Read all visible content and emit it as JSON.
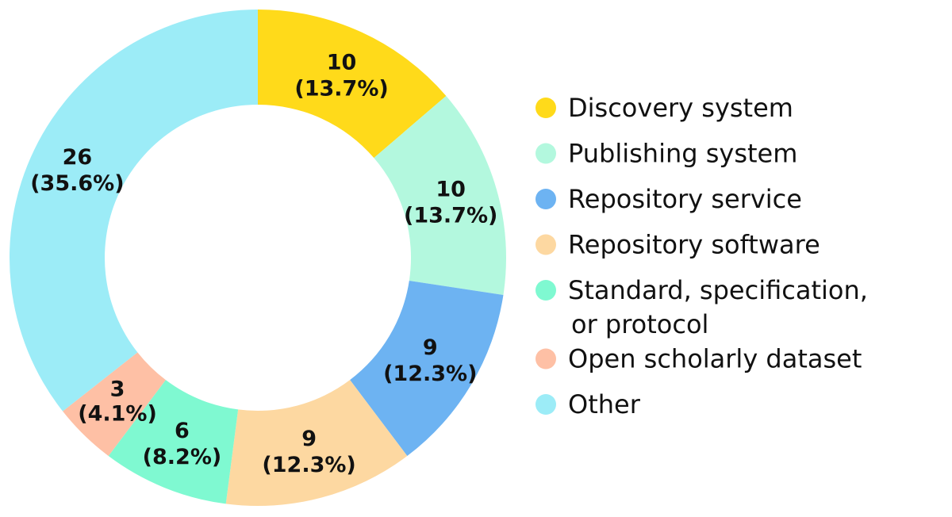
{
  "chart_data": {
    "type": "pie",
    "variant": "donut",
    "title": "",
    "total": 73,
    "categories": [
      "Discovery system",
      "Publishing system",
      "Repository service",
      "Repository software",
      "Standard, specification, or protocol",
      "Open scholarly dataset",
      "Other"
    ],
    "values": [
      10,
      10,
      9,
      9,
      6,
      3,
      26
    ],
    "percent_labels": [
      "(13.7%)",
      "(13.7%)",
      "(12.3%)",
      "(12.3%)",
      "(8.2%)",
      "(4.1%)",
      "(35.6%)"
    ],
    "value_labels": [
      "10",
      "10",
      "9",
      "9",
      "6",
      "3",
      "26"
    ],
    "colors": [
      "#FFDA1A",
      "#B3F8DE",
      "#6DB3F2",
      "#FDD8A1",
      "#7FF9D1",
      "#FEC0A5",
      "#9CECF7"
    ],
    "legend": {
      "placement": "right",
      "entries": [
        {
          "lines": [
            "Discovery system"
          ],
          "color": "#FFDA1A"
        },
        {
          "lines": [
            "Publishing system"
          ],
          "color": "#B3F8DE"
        },
        {
          "lines": [
            "Repository service"
          ],
          "color": "#6DB3F2"
        },
        {
          "lines": [
            "Repository software"
          ],
          "color": "#FDD8A1"
        },
        {
          "lines": [
            "Standard, specification,",
            "or protocol"
          ],
          "color": "#7FF9D1"
        },
        {
          "lines": [
            "Open scholarly dataset"
          ],
          "color": "#FEC0A5"
        },
        {
          "lines": [
            "Other"
          ],
          "color": "#9CECF7"
        }
      ]
    }
  }
}
